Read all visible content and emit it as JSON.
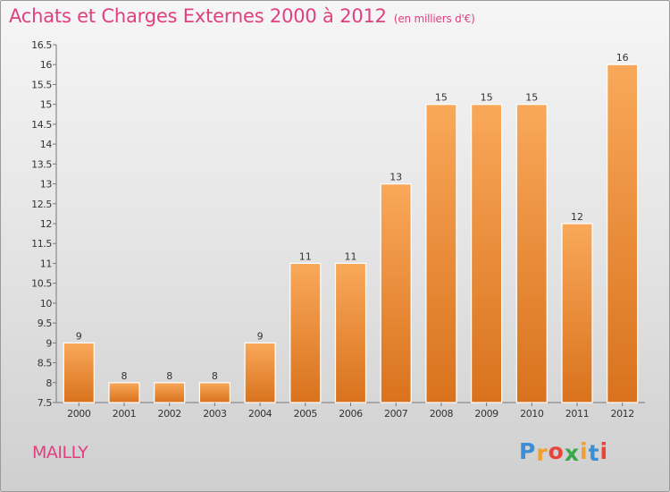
{
  "title": "Achats et Charges Externes 2000 à 2012",
  "subtitle": "(en milliers d'€)",
  "commune": "MAILLY",
  "logo": {
    "letters": [
      "P",
      "r",
      "o",
      "x",
      "i",
      "t",
      "i"
    ],
    "colors": [
      "#3a8fd6",
      "#f0a030",
      "#e8443a",
      "#3aa84a",
      "#f0a030",
      "#3a8fd6",
      "#e8443a"
    ]
  },
  "chart_data": {
    "type": "bar",
    "title": "Achats et Charges Externes 2000 à 2012",
    "subtitle": "(en milliers d'€)",
    "categories": [
      "2000",
      "2001",
      "2002",
      "2003",
      "2004",
      "2005",
      "2006",
      "2007",
      "2008",
      "2009",
      "2010",
      "2011",
      "2012"
    ],
    "values": [
      9,
      8,
      8,
      8,
      9,
      11,
      11,
      13,
      15,
      15,
      15,
      12,
      16
    ],
    "value_labels": [
      "9",
      "8",
      "8",
      "8",
      "9",
      "11",
      "11",
      "13",
      "15",
      "15",
      "15",
      "12",
      "16"
    ],
    "ylim": [
      7.5,
      16.5
    ],
    "yticks": [
      "7.5",
      "8",
      "8.5",
      "9",
      "9.5",
      "10",
      "10.5",
      "11",
      "11.5",
      "12",
      "12.5",
      "13",
      "13.5",
      "14",
      "14.5",
      "15",
      "15.5",
      "16",
      "16.5"
    ],
    "grid": false,
    "legend": "none",
    "bar_color_top": "#f9a85a",
    "bar_color_bottom": "#d9721c"
  }
}
